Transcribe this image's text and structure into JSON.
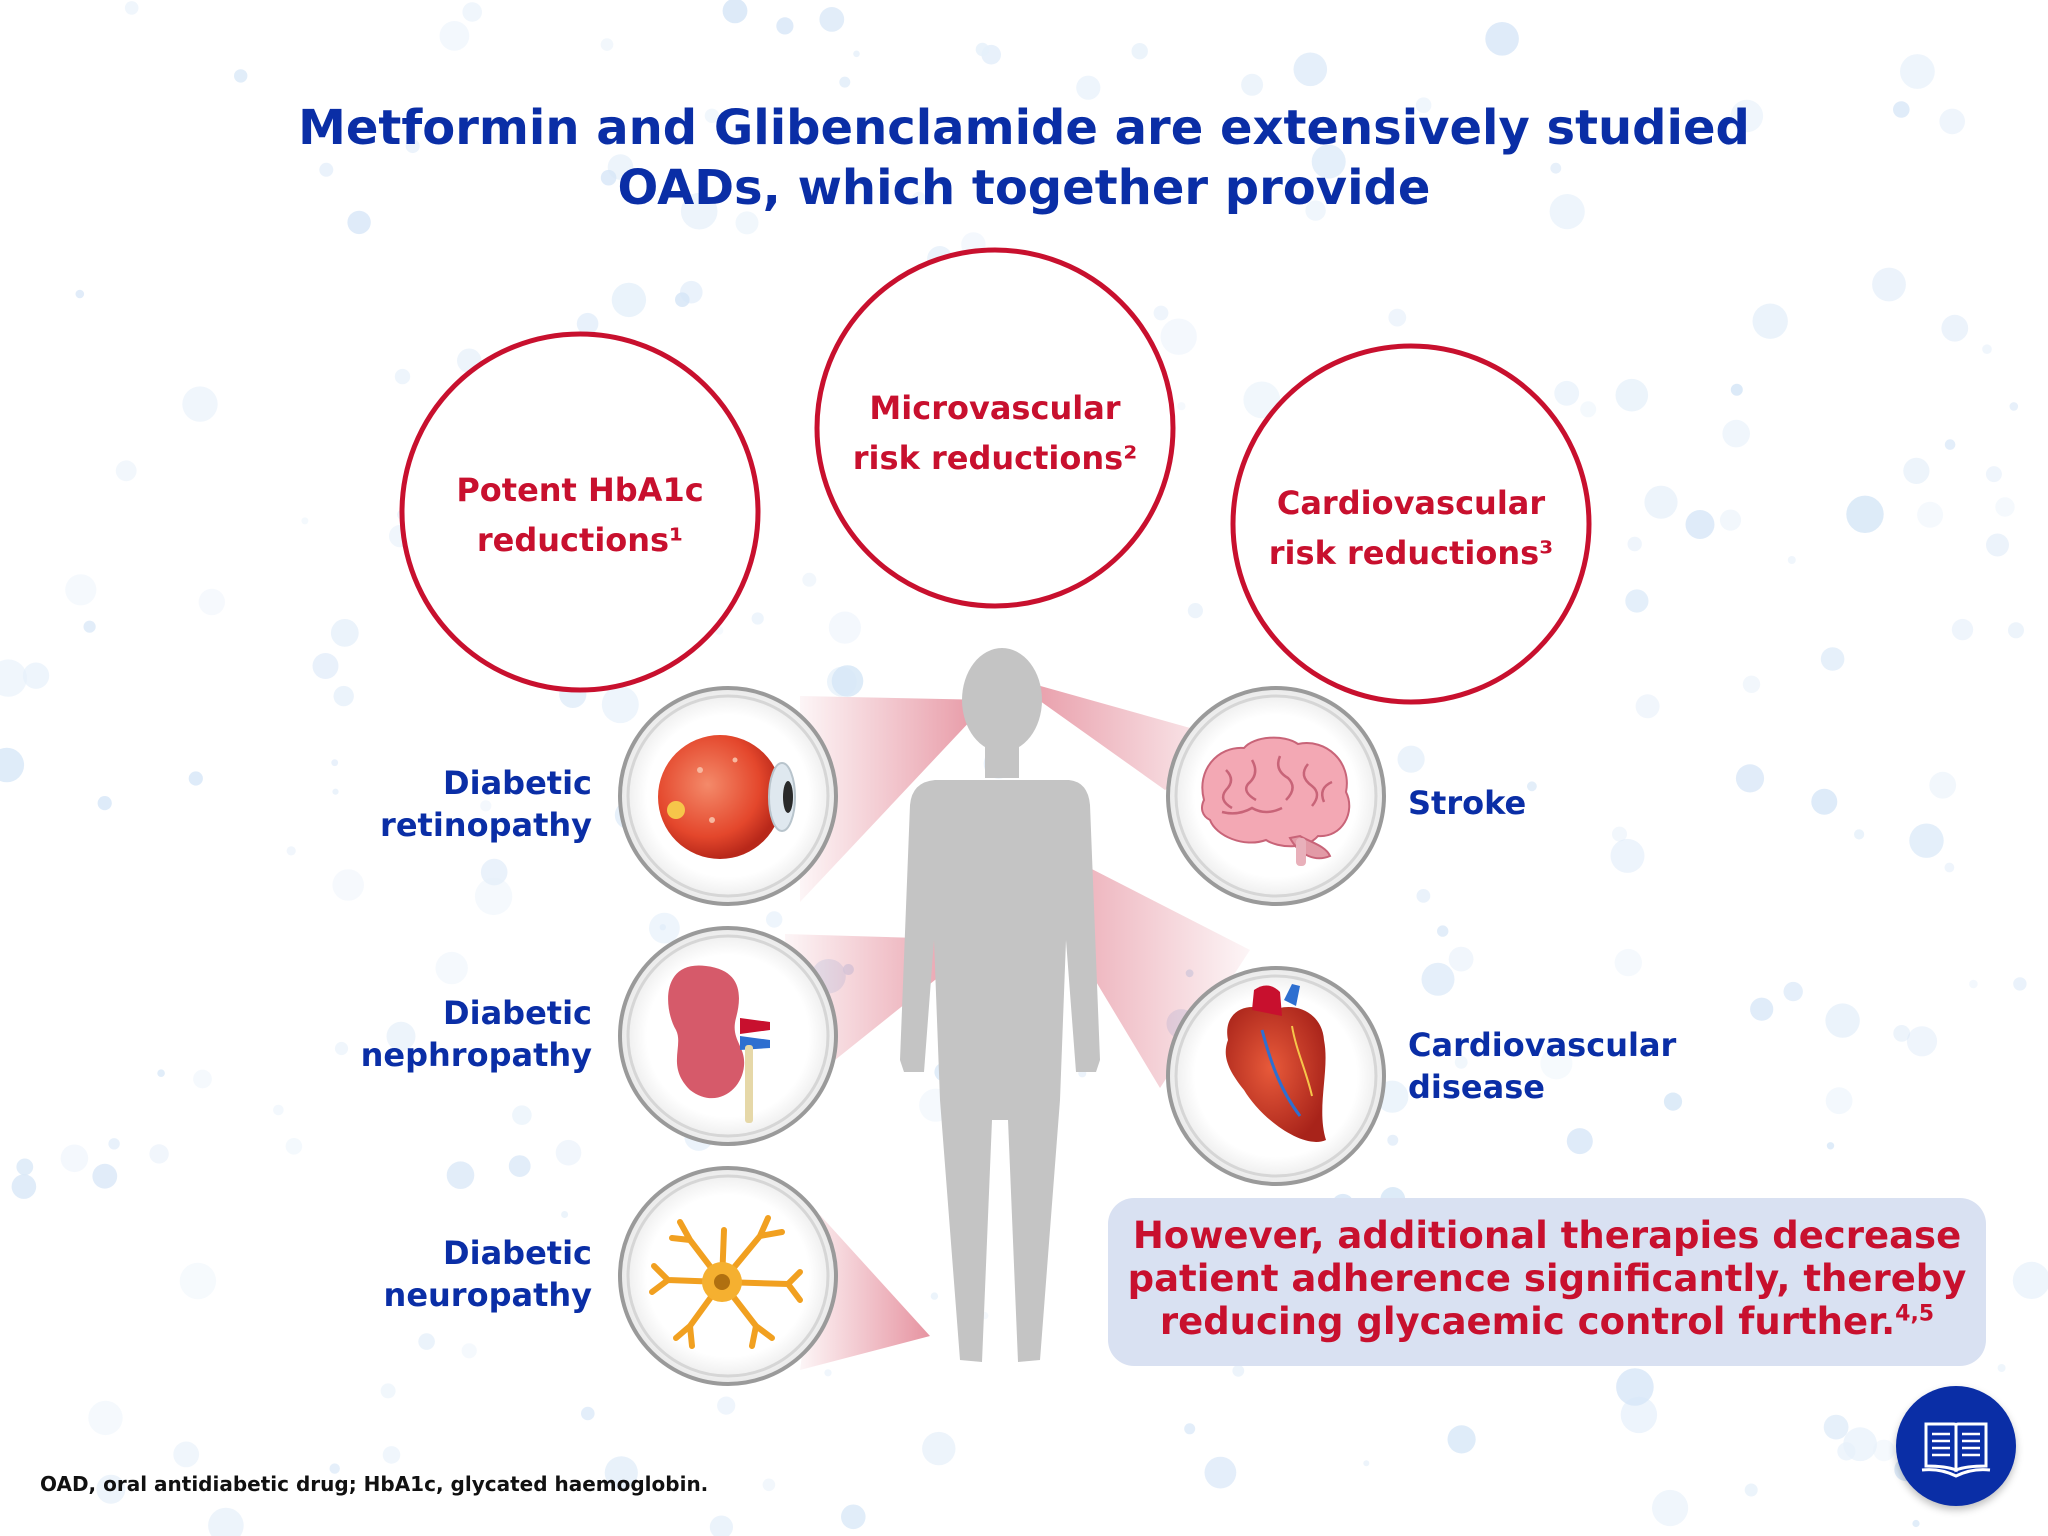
{
  "title": {
    "line1": "Metformin and Glibenclamide are extensively studied",
    "line2": "OADs, which together provide"
  },
  "benefits": [
    {
      "line1": "Potent HbA1c",
      "line2": "reductions¹"
    },
    {
      "line1": "Microvascular",
      "line2": "risk reductions²"
    },
    {
      "line1": "Cardiovascular",
      "line2": "risk reductions³"
    }
  ],
  "conditions": {
    "retinopathy": {
      "line1": "Diabetic",
      "line2": "retinopathy",
      "icon": "eye-icon"
    },
    "nephropathy": {
      "line1": "Diabetic",
      "line2": "nephropathy",
      "icon": "kidney-icon"
    },
    "neuropathy": {
      "line1": "Diabetic",
      "line2": "neuropathy",
      "icon": "neuron-icon"
    },
    "stroke": {
      "line1": "Stroke",
      "icon": "brain-icon"
    },
    "cardiovascular": {
      "line1": "Cardiovascular",
      "line2": "disease",
      "icon": "heart-icon"
    }
  },
  "notice": {
    "line1": "However, additional therapies decrease",
    "line2": "patient adherence significantly, thereby",
    "line3": "reducing glycaemic control further.",
    "refs": "4,5"
  },
  "footnote": "OAD, oral antidiabetic drug; HbA1c, glycated haemoglobin.",
  "icons": {
    "references_button": "book-icon"
  },
  "colors": {
    "title_blue": "#0a2ea6",
    "accent_red": "#c8102e",
    "notice_bg": "#d9e1f2",
    "silhouette": "#c4c4c4"
  }
}
